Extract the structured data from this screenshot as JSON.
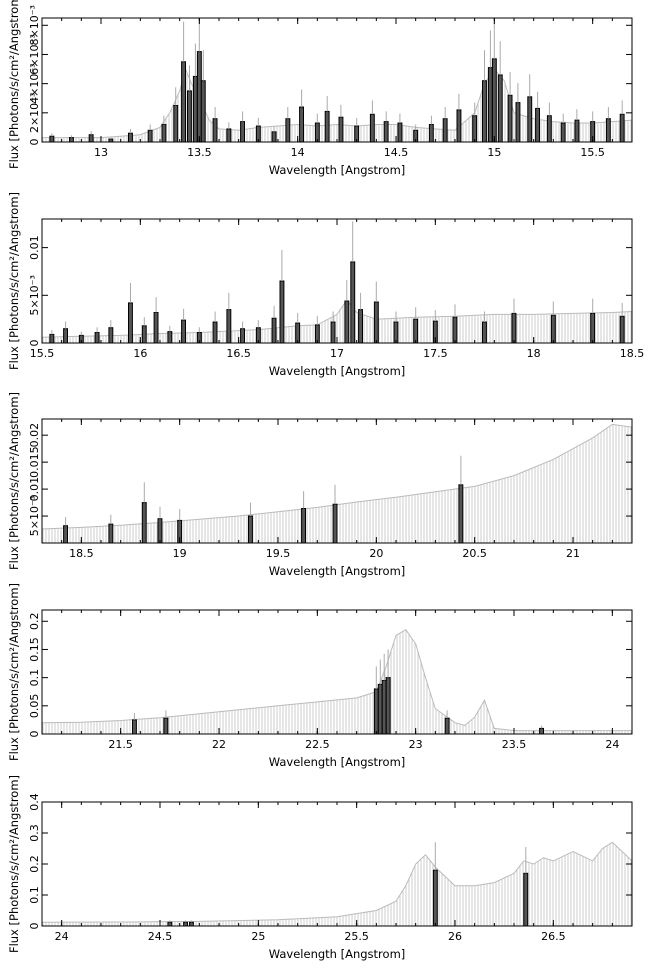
{
  "chart_data": [
    {
      "type": "line",
      "xlabel": "Wavelength [Angstrom]",
      "ylabel": "Flux [Photons/s/cm²/Angstrom]",
      "xlim": [
        12.7,
        15.7
      ],
      "ylim": [
        0,
        0.0085
      ],
      "xticks": [
        13,
        13.5,
        14,
        14.5,
        15,
        15.5
      ],
      "xtick_labels": [
        "13",
        "13.5",
        "14",
        "14.5",
        "15",
        "15.5"
      ],
      "yticks": [
        0,
        0.002,
        0.004,
        0.006,
        0.008
      ],
      "ytick_labels": [
        "0",
        "2×10⁻³",
        "4×10⁻³",
        "6×10⁻³",
        "8×10⁻³"
      ],
      "series": [
        {
          "kind": "model",
          "x": [
            12.7,
            12.8,
            12.9,
            13.0,
            13.1,
            13.2,
            13.3,
            13.35,
            13.4,
            13.43,
            13.46,
            13.5,
            13.55,
            13.6,
            13.7,
            13.8,
            13.9,
            14.0,
            14.1,
            14.2,
            14.3,
            14.4,
            14.5,
            14.6,
            14.7,
            14.8,
            14.9,
            14.95,
            15.0,
            15.05,
            15.1,
            15.2,
            15.3,
            15.4,
            15.5,
            15.6,
            15.7
          ],
          "values": [
            0.0003,
            0.0003,
            0.0003,
            0.0003,
            0.0004,
            0.0005,
            0.001,
            0.002,
            0.0035,
            0.005,
            0.004,
            0.003,
            0.0015,
            0.0009,
            0.0008,
            0.001,
            0.0011,
            0.0012,
            0.0011,
            0.0012,
            0.0011,
            0.0012,
            0.0012,
            0.001,
            0.0009,
            0.0008,
            0.002,
            0.004,
            0.005,
            0.0042,
            0.002,
            0.0016,
            0.0014,
            0.0013,
            0.0013,
            0.0014,
            0.0015
          ]
        },
        {
          "kind": "data",
          "x": [
            12.75,
            12.85,
            12.95,
            13.05,
            13.15,
            13.25,
            13.32,
            13.38,
            13.42,
            13.45,
            13.48,
            13.5,
            13.52,
            13.58,
            13.65,
            13.72,
            13.8,
            13.88,
            13.95,
            14.02,
            14.1,
            14.15,
            14.22,
            14.3,
            14.38,
            14.45,
            14.52,
            14.6,
            14.68,
            14.75,
            14.82,
            14.9,
            14.95,
            14.98,
            15.0,
            15.03,
            15.08,
            15.12,
            15.18,
            15.22,
            15.28,
            15.35,
            15.42,
            15.5,
            15.58,
            15.65
          ],
          "values": [
            0.0004,
            0.0003,
            0.0005,
            0.0002,
            0.0006,
            0.0008,
            0.0012,
            0.0025,
            0.0055,
            0.0035,
            0.0045,
            0.0062,
            0.0042,
            0.0016,
            0.0009,
            0.0014,
            0.0011,
            0.0007,
            0.0016,
            0.0024,
            0.0013,
            0.0021,
            0.0017,
            0.0011,
            0.0019,
            0.0014,
            0.0013,
            0.0008,
            0.0012,
            0.0016,
            0.0022,
            0.0018,
            0.0042,
            0.0051,
            0.0057,
            0.0046,
            0.0032,
            0.0027,
            0.0031,
            0.0023,
            0.0018,
            0.0013,
            0.0015,
            0.0014,
            0.0016,
            0.0019
          ]
        }
      ]
    },
    {
      "type": "line",
      "xlabel": "Wavelength [Angstrom]",
      "ylabel": "Flux [Photons/s/cm²/Angstrom]",
      "xlim": [
        15.5,
        18.5
      ],
      "ylim": [
        0,
        0.013
      ],
      "xticks": [
        15.5,
        16,
        16.5,
        17,
        17.5,
        18,
        18.5
      ],
      "xtick_labels": [
        "15.5",
        "16",
        "16.5",
        "17",
        "17.5",
        "18",
        "18.5"
      ],
      "yticks": [
        0,
        0.005,
        0.01
      ],
      "ytick_labels": [
        "0",
        "5×10⁻³",
        "0.01"
      ],
      "series": [
        {
          "kind": "model",
          "x": [
            15.5,
            15.7,
            15.9,
            16.1,
            16.3,
            16.5,
            16.6,
            16.7,
            16.8,
            16.9,
            17.0,
            17.05,
            17.1,
            17.2,
            17.4,
            17.6,
            17.8,
            18.0,
            18.2,
            18.4,
            18.5
          ],
          "values": [
            0.0006,
            0.0007,
            0.0008,
            0.001,
            0.0011,
            0.0013,
            0.0014,
            0.0016,
            0.0018,
            0.0019,
            0.003,
            0.0045,
            0.0032,
            0.0025,
            0.0027,
            0.0028,
            0.003,
            0.003,
            0.0031,
            0.0032,
            0.0033
          ]
        },
        {
          "kind": "data",
          "x": [
            15.55,
            15.62,
            15.7,
            15.78,
            15.85,
            15.95,
            16.02,
            16.08,
            16.15,
            16.22,
            16.3,
            16.38,
            16.45,
            16.52,
            16.6,
            16.68,
            16.72,
            16.8,
            16.9,
            16.98,
            17.05,
            17.08,
            17.12,
            17.2,
            17.3,
            17.4,
            17.5,
            17.6,
            17.75,
            17.9,
            18.1,
            18.3,
            18.45
          ],
          "values": [
            0.0009,
            0.0015,
            0.0008,
            0.0011,
            0.0016,
            0.0042,
            0.0018,
            0.0032,
            0.0012,
            0.0024,
            0.0011,
            0.0022,
            0.0035,
            0.0015,
            0.0016,
            0.0026,
            0.0065,
            0.0021,
            0.0019,
            0.0022,
            0.0044,
            0.0085,
            0.0035,
            0.0043,
            0.0022,
            0.0025,
            0.0023,
            0.0027,
            0.0022,
            0.0031,
            0.0029,
            0.0031,
            0.0028
          ]
        }
      ]
    },
    {
      "type": "line",
      "xlabel": "Wavelength [Angstrom]",
      "ylabel": "Flux [Photons/s/cm²/Angstrom]",
      "xlim": [
        18.3,
        21.3
      ],
      "ylim": [
        0,
        0.023
      ],
      "xticks": [
        18.5,
        19,
        19.5,
        20,
        20.5,
        21
      ],
      "xtick_labels": [
        "18.5",
        "19",
        "19.5",
        "20",
        "20.5",
        "21"
      ],
      "yticks": [
        0.005,
        0.01,
        0.015,
        0.02
      ],
      "ytick_labels": [
        "5×10⁻³",
        "0.01",
        "0.015",
        "0.02"
      ],
      "series": [
        {
          "kind": "model",
          "x": [
            18.3,
            18.5,
            18.7,
            18.9,
            19.1,
            19.3,
            19.5,
            19.7,
            19.9,
            20.1,
            20.3,
            20.5,
            20.7,
            20.9,
            21.0,
            21.1,
            21.2,
            21.3
          ],
          "values": [
            0.0026,
            0.0029,
            0.0033,
            0.0038,
            0.0044,
            0.005,
            0.0058,
            0.0066,
            0.0076,
            0.0085,
            0.0095,
            0.0105,
            0.0125,
            0.0155,
            0.0175,
            0.0195,
            0.022,
            0.0215
          ]
        },
        {
          "kind": "data",
          "x": [
            18.42,
            18.65,
            18.82,
            18.9,
            19.0,
            19.36,
            19.63,
            19.79,
            20.43
          ],
          "values": [
            0.0032,
            0.0035,
            0.0075,
            0.0045,
            0.0042,
            0.005,
            0.0064,
            0.0072,
            0.0108
          ]
        }
      ]
    },
    {
      "type": "line",
      "xlabel": "Wavelength [Angstrom]",
      "ylabel": "Flux [Photons/s/cm²/Angstrom]",
      "xlim": [
        21.1,
        24.1
      ],
      "ylim": [
        0,
        0.22
      ],
      "xticks": [
        21.5,
        22,
        22.5,
        23,
        23.5,
        24
      ],
      "xtick_labels": [
        "21.5",
        "22",
        "22.5",
        "23",
        "23.5",
        "24"
      ],
      "yticks": [
        0,
        0.05,
        0.1,
        0.15,
        0.2
      ],
      "ytick_labels": [
        "0",
        "0.05",
        "0.1",
        "0.15",
        "0.2"
      ],
      "series": [
        {
          "kind": "model",
          "x": [
            21.1,
            21.3,
            21.5,
            21.7,
            21.9,
            22.1,
            22.3,
            22.5,
            22.7,
            22.8,
            22.85,
            22.9,
            22.95,
            23.0,
            23.05,
            23.1,
            23.2,
            23.25,
            23.3,
            23.35,
            23.4,
            23.5,
            23.7,
            23.9,
            24.1
          ],
          "values": [
            0.02,
            0.021,
            0.024,
            0.029,
            0.036,
            0.043,
            0.05,
            0.057,
            0.064,
            0.075,
            0.12,
            0.175,
            0.185,
            0.16,
            0.1,
            0.045,
            0.02,
            0.015,
            0.03,
            0.06,
            0.01,
            0.006,
            0.006,
            0.006,
            0.006
          ]
        },
        {
          "kind": "data",
          "x": [
            21.57,
            21.73,
            22.8,
            22.82,
            22.84,
            22.86,
            23.16,
            23.64
          ],
          "values": [
            0.025,
            0.028,
            0.08,
            0.088,
            0.095,
            0.1,
            0.028,
            0.01
          ]
        }
      ]
    },
    {
      "type": "line",
      "xlabel": "Wavelength [Angstrom]",
      "ylabel": "Flux [Photons/s/cm²/Angstrom]",
      "xlim": [
        23.9,
        26.9
      ],
      "ylim": [
        0,
        0.4
      ],
      "xticks": [
        24,
        24.5,
        25,
        25.5,
        26,
        26.5
      ],
      "xtick_labels": [
        "24",
        "24.5",
        "25",
        "25.5",
        "26",
        "26.5"
      ],
      "yticks": [
        0,
        0.1,
        0.2,
        0.3,
        0.4
      ],
      "ytick_labels": [
        "0",
        "0.1",
        "0.2",
        "0.3",
        "0.4"
      ],
      "series": [
        {
          "kind": "model",
          "x": [
            23.9,
            24.3,
            24.7,
            25.1,
            25.4,
            25.6,
            25.7,
            25.75,
            25.8,
            25.85,
            25.9,
            26.0,
            26.1,
            26.2,
            26.3,
            26.35,
            26.4,
            26.45,
            26.5,
            26.6,
            26.7,
            26.75,
            26.8,
            26.9
          ],
          "values": [
            0.012,
            0.013,
            0.015,
            0.02,
            0.03,
            0.05,
            0.08,
            0.13,
            0.2,
            0.23,
            0.19,
            0.13,
            0.13,
            0.14,
            0.17,
            0.21,
            0.2,
            0.22,
            0.21,
            0.24,
            0.21,
            0.25,
            0.27,
            0.21
          ]
        },
        {
          "kind": "data",
          "x": [
            24.55,
            24.63,
            24.66,
            25.9,
            26.36
          ],
          "values": [
            0.012,
            0.012,
            0.012,
            0.18,
            0.17
          ]
        }
      ]
    }
  ]
}
